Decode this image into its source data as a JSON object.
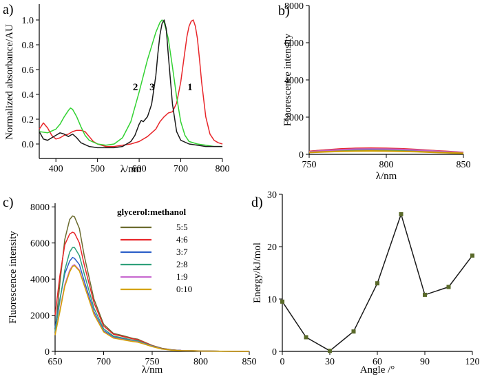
{
  "chart_data": [
    {
      "panel": "a)",
      "type": "line",
      "xlabel": "λ/nm",
      "ylabel": "Normalized absorbance/AU",
      "xlim": [
        360,
        800
      ],
      "ylim": [
        -0.05,
        1.05
      ],
      "xticks": [
        400,
        500,
        600,
        700,
        800
      ],
      "yticks": [
        0.0,
        0.2,
        0.4,
        0.6,
        0.8,
        1.0
      ],
      "ytick_labels": [
        "0.0",
        "0.2",
        "0.4",
        "0.6",
        "0.8",
        "1.0"
      ],
      "series": [
        {
          "name": "1",
          "color": "#e8262a",
          "x": [
            360,
            370,
            380,
            390,
            400,
            410,
            420,
            430,
            440,
            450,
            460,
            470,
            480,
            490,
            500,
            520,
            540,
            560,
            580,
            600,
            620,
            640,
            650,
            660,
            670,
            680,
            690,
            700,
            710,
            715,
            720,
            725,
            730,
            735,
            740,
            745,
            750,
            760,
            770,
            780,
            790,
            800
          ],
          "y": [
            0.12,
            0.17,
            0.13,
            0.07,
            0.04,
            0.05,
            0.07,
            0.08,
            0.1,
            0.11,
            0.11,
            0.1,
            0.06,
            0.02,
            0.0,
            -0.02,
            -0.02,
            -0.01,
            0.0,
            0.02,
            0.06,
            0.12,
            0.18,
            0.22,
            0.25,
            0.26,
            0.33,
            0.5,
            0.75,
            0.87,
            0.95,
            0.99,
            1.0,
            0.95,
            0.85,
            0.68,
            0.5,
            0.22,
            0.08,
            0.03,
            0.01,
            0.0
          ]
        },
        {
          "name": "2",
          "color": "#32d232",
          "x": [
            360,
            380,
            400,
            410,
            420,
            430,
            435,
            440,
            450,
            460,
            470,
            480,
            500,
            520,
            540,
            560,
            580,
            600,
            620,
            640,
            650,
            655,
            660,
            670,
            680,
            690,
            700,
            710,
            720,
            740,
            760,
            780,
            800
          ],
          "y": [
            0.1,
            0.09,
            0.12,
            0.16,
            0.22,
            0.27,
            0.29,
            0.28,
            0.22,
            0.14,
            0.07,
            0.03,
            0.0,
            -0.01,
            0.0,
            0.05,
            0.18,
            0.42,
            0.68,
            0.9,
            0.98,
            1.0,
            0.98,
            0.85,
            0.62,
            0.38,
            0.18,
            0.07,
            0.02,
            0.0,
            -0.01,
            -0.02,
            -0.02
          ]
        },
        {
          "name": "3",
          "color": "#1a1a1a",
          "x": [
            360,
            370,
            380,
            390,
            400,
            410,
            420,
            430,
            440,
            450,
            460,
            480,
            500,
            520,
            540,
            560,
            580,
            590,
            600,
            605,
            610,
            620,
            630,
            640,
            645,
            650,
            655,
            660,
            665,
            670,
            680,
            690,
            700,
            720,
            740,
            760,
            780,
            800
          ],
          "y": [
            0.1,
            0.04,
            0.03,
            0.05,
            0.07,
            0.09,
            0.08,
            0.06,
            0.08,
            0.05,
            0.01,
            -0.02,
            -0.03,
            -0.03,
            -0.03,
            -0.02,
            0.02,
            0.07,
            0.16,
            0.19,
            0.18,
            0.22,
            0.32,
            0.55,
            0.73,
            0.88,
            0.97,
            1.0,
            0.93,
            0.72,
            0.32,
            0.1,
            0.03,
            0.0,
            -0.01,
            -0.02,
            -0.02,
            -0.02
          ]
        }
      ],
      "annotations": [
        {
          "text": "1",
          "x": 722,
          "y": 0.46
        },
        {
          "text": "2",
          "x": 591,
          "y": 0.46
        },
        {
          "text": "3",
          "x": 631,
          "y": 0.46
        }
      ]
    },
    {
      "panel": "b)",
      "type": "line",
      "xlabel": "λ/nm",
      "ylabel": "Fluorescence intensity",
      "xlim": [
        750,
        850
      ],
      "ylim": [
        0,
        8000
      ],
      "xticks": [
        750,
        800,
        850
      ],
      "yticks": [
        0,
        2000,
        4000,
        6000,
        8000
      ],
      "series": [
        {
          "name": "s1",
          "color": "#5a5a2a",
          "x": [
            750,
            760,
            770,
            780,
            790,
            800,
            810,
            820,
            830,
            840,
            850
          ],
          "y": [
            150,
            220,
            270,
            300,
            310,
            300,
            280,
            240,
            190,
            140,
            90
          ]
        },
        {
          "name": "s2",
          "color": "#e8262a",
          "x": [
            750,
            760,
            770,
            780,
            790,
            800,
            810,
            820,
            830,
            840,
            850
          ],
          "y": [
            160,
            230,
            290,
            320,
            330,
            320,
            295,
            255,
            200,
            150,
            95
          ]
        },
        {
          "name": "s3",
          "color": "#3a5ac8",
          "x": [
            750,
            760,
            770,
            780,
            790,
            800,
            810,
            820,
            830,
            840,
            850
          ],
          "y": [
            120,
            170,
            205,
            225,
            230,
            222,
            205,
            178,
            142,
            105,
            70
          ]
        },
        {
          "name": "s4",
          "color": "#2fa07a",
          "x": [
            750,
            760,
            770,
            780,
            790,
            800,
            810,
            820,
            830,
            840,
            850
          ],
          "y": [
            110,
            150,
            180,
            198,
            203,
            196,
            180,
            156,
            125,
            92,
            62
          ]
        },
        {
          "name": "s5",
          "color": "#c060c0",
          "x": [
            750,
            760,
            770,
            780,
            790,
            800,
            810,
            820,
            830,
            840,
            850
          ],
          "y": [
            140,
            200,
            250,
            280,
            290,
            282,
            262,
            228,
            182,
            135,
            88
          ]
        },
        {
          "name": "s6",
          "color": "#d0a000",
          "x": [
            750,
            760,
            770,
            780,
            790,
            800,
            810,
            820,
            830,
            840,
            850
          ],
          "y": [
            100,
            135,
            160,
            175,
            180,
            174,
            160,
            140,
            112,
            84,
            56
          ]
        }
      ]
    },
    {
      "panel": "c)",
      "type": "line",
      "xlabel": "λ/nm",
      "ylabel": "Fluorescence intensity",
      "xlim": [
        650,
        850
      ],
      "ylim": [
        0,
        8200
      ],
      "xticks": [
        650,
        700,
        750,
        800,
        850
      ],
      "yticks": [
        0,
        2000,
        4000,
        6000,
        8000
      ],
      "legend_title": "glycerol:methanol",
      "legend_position": "top-right",
      "series": [
        {
          "name": "5:5",
          "color": "#6b6b2e",
          "x": [
            650,
            655,
            660,
            665,
            668,
            670,
            675,
            680,
            690,
            700,
            710,
            720,
            730,
            735,
            740,
            750,
            760,
            770,
            780,
            800,
            820,
            850
          ],
          "y": [
            1000,
            3800,
            6200,
            7300,
            7500,
            7450,
            6800,
            5300,
            2900,
            1500,
            1000,
            870,
            720,
            680,
            560,
            330,
            170,
            90,
            55,
            25,
            10,
            0
          ]
        },
        {
          "name": "4:6",
          "color": "#e8262a",
          "x": [
            650,
            655,
            660,
            665,
            668,
            670,
            675,
            680,
            690,
            700,
            710,
            720,
            730,
            735,
            740,
            750,
            760,
            770,
            780,
            800,
            820,
            850
          ],
          "y": [
            2000,
            4200,
            5900,
            6500,
            6600,
            6550,
            6000,
            4800,
            2700,
            1400,
            950,
            820,
            690,
            650,
            540,
            320,
            160,
            85,
            52,
            24,
            10,
            0
          ]
        },
        {
          "name": "3:7",
          "color": "#2c5fc8",
          "x": [
            650,
            655,
            660,
            665,
            668,
            670,
            675,
            680,
            690,
            700,
            710,
            720,
            730,
            735,
            740,
            750,
            760,
            770,
            780,
            800,
            820,
            850
          ],
          "y": [
            1300,
            2900,
            4300,
            5000,
            5200,
            5150,
            4800,
            3900,
            2200,
            1150,
            800,
            690,
            580,
            550,
            460,
            280,
            140,
            75,
            45,
            20,
            8,
            0
          ]
        },
        {
          "name": "2:8",
          "color": "#2fa07a",
          "x": [
            650,
            655,
            660,
            665,
            668,
            670,
            675,
            680,
            690,
            700,
            710,
            720,
            730,
            735,
            740,
            750,
            760,
            770,
            780,
            800,
            820,
            850
          ],
          "y": [
            1100,
            2800,
            4500,
            5500,
            5750,
            5750,
            5300,
            4300,
            2400,
            1250,
            850,
            740,
            620,
            590,
            490,
            300,
            150,
            80,
            48,
            22,
            9,
            0
          ]
        },
        {
          "name": "1:9",
          "color": "#c86ad0",
          "x": [
            650,
            655,
            660,
            665,
            668,
            670,
            675,
            680,
            690,
            700,
            710,
            720,
            730,
            735,
            740,
            750,
            760,
            770,
            780,
            800,
            820,
            850
          ],
          "y": [
            900,
            2300,
            3700,
            4500,
            4750,
            4800,
            4500,
            3700,
            2100,
            1100,
            760,
            660,
            560,
            530,
            445,
            270,
            135,
            72,
            44,
            20,
            8,
            0
          ]
        },
        {
          "name": "0:10",
          "color": "#d4a300",
          "x": [
            650,
            655,
            660,
            665,
            668,
            670,
            675,
            680,
            690,
            700,
            710,
            720,
            730,
            735,
            740,
            750,
            760,
            770,
            780,
            800,
            820,
            850
          ],
          "y": [
            900,
            2200,
            3600,
            4400,
            4700,
            4750,
            4450,
            3650,
            2050,
            1080,
            740,
            640,
            540,
            510,
            430,
            260,
            130,
            70,
            42,
            19,
            8,
            0
          ]
        }
      ]
    },
    {
      "panel": "d)",
      "type": "line",
      "xlabel": "Angle /°",
      "ylabel": "Energy/kJ/mol",
      "xlim": [
        0,
        120
      ],
      "ylim": [
        0,
        30
      ],
      "xticks": [
        0,
        30,
        60,
        90,
        120
      ],
      "yticks": [
        0,
        10,
        20,
        30
      ],
      "series": [
        {
          "name": "energy",
          "color": "#1a1a1a",
          "marker_color": "#5a6a2a",
          "x": [
            0,
            15,
            30,
            45,
            60,
            75,
            90,
            105,
            120
          ],
          "y": [
            9.5,
            2.7,
            0.1,
            3.8,
            13.0,
            26.2,
            10.8,
            12.3,
            18.3
          ]
        }
      ]
    }
  ]
}
